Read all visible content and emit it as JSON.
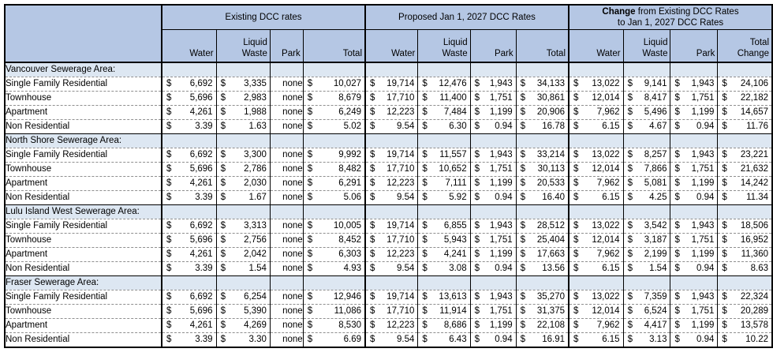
{
  "colors": {
    "header_bg": "#b5c7e4",
    "section_bg": "#dde7f2",
    "grid_line": "#000000",
    "row_divider": "#8f8f8f"
  },
  "table": {
    "currency_symbol": "$",
    "none_label": "none",
    "groups": [
      {
        "id": "existing",
        "title_bold": "",
        "title_rest": "Existing DCC rates",
        "title_line2": "",
        "columns": [
          {
            "lines": [
              "Water"
            ]
          },
          {
            "lines": [
              "Liquid",
              "Waste"
            ]
          },
          {
            "lines": [
              "Park"
            ]
          },
          {
            "lines": [
              "Total"
            ]
          }
        ]
      },
      {
        "id": "proposed",
        "title_bold": "",
        "title_rest": "Proposed Jan 1, 2027 DCC Rates",
        "title_line2": "",
        "columns": [
          {
            "lines": [
              "Water"
            ]
          },
          {
            "lines": [
              "Liquid",
              "Waste"
            ]
          },
          {
            "lines": [
              "Park"
            ]
          },
          {
            "lines": [
              "Total"
            ]
          }
        ]
      },
      {
        "id": "change",
        "title_bold": "Change",
        "title_rest": " from Existing DCC Rates",
        "title_line2": "to Jan 1, 2027 DCC Rates",
        "columns": [
          {
            "lines": [
              "Water"
            ]
          },
          {
            "lines": [
              "Liquid",
              "Waste"
            ]
          },
          {
            "lines": [
              "Park"
            ]
          },
          {
            "lines": [
              "Total",
              "Change"
            ]
          }
        ]
      }
    ],
    "sections": [
      {
        "name": "Vancouver Sewerage Area:",
        "rows": [
          {
            "label": "Single Family Residential",
            "values": [
              "6,692",
              "3,335",
              "none",
              "10,027",
              "19,714",
              "12,476",
              "1,943",
              "34,133",
              "13,022",
              "9,141",
              "1,943",
              "24,106"
            ]
          },
          {
            "label": "Townhouse",
            "values": [
              "5,696",
              "2,983",
              "none",
              "8,679",
              "17,710",
              "11,400",
              "1,751",
              "30,861",
              "12,014",
              "8,417",
              "1,751",
              "22,182"
            ]
          },
          {
            "label": "Apartment",
            "values": [
              "4,261",
              "1,988",
              "none",
              "6,249",
              "12,223",
              "7,484",
              "1,199",
              "20,906",
              "7,962",
              "5,496",
              "1,199",
              "14,657"
            ]
          },
          {
            "label": "Non Residential",
            "values": [
              "3.39",
              "1.63",
              "none",
              "5.02",
              "9.54",
              "6.30",
              "0.94",
              "16.78",
              "6.15",
              "4.67",
              "0.94",
              "11.76"
            ]
          }
        ]
      },
      {
        "name": "North Shore Sewerage Area:",
        "rows": [
          {
            "label": "Single Family Residential",
            "values": [
              "6,692",
              "3,300",
              "none",
              "9,992",
              "19,714",
              "11,557",
              "1,943",
              "33,214",
              "13,022",
              "8,257",
              "1,943",
              "23,221"
            ]
          },
          {
            "label": "Townhouse",
            "values": [
              "5,696",
              "2,786",
              "none",
              "8,482",
              "17,710",
              "10,652",
              "1,751",
              "30,113",
              "12,014",
              "7,866",
              "1,751",
              "21,632"
            ]
          },
          {
            "label": "Apartment",
            "values": [
              "4,261",
              "2,030",
              "none",
              "6,291",
              "12,223",
              "7,111",
              "1,199",
              "20,533",
              "7,962",
              "5,081",
              "1,199",
              "14,242"
            ]
          },
          {
            "label": "Non Residential",
            "values": [
              "3.39",
              "1.67",
              "none",
              "5.06",
              "9.54",
              "5.92",
              "0.94",
              "16.40",
              "6.15",
              "4.25",
              "0.94",
              "11.34"
            ]
          }
        ]
      },
      {
        "name": "Lulu Island West Sewerage Area:",
        "rows": [
          {
            "label": "Single Family Residential",
            "values": [
              "6,692",
              "3,313",
              "none",
              "10,005",
              "19,714",
              "6,855",
              "1,943",
              "28,512",
              "13,022",
              "3,542",
              "1,943",
              "18,506"
            ]
          },
          {
            "label": "Townhouse",
            "values": [
              "5,696",
              "2,756",
              "none",
              "8,452",
              "17,710",
              "5,943",
              "1,751",
              "25,404",
              "12,014",
              "3,187",
              "1,751",
              "16,952"
            ]
          },
          {
            "label": "Apartment",
            "values": [
              "4,261",
              "2,042",
              "none",
              "6,303",
              "12,223",
              "4,241",
              "1,199",
              "17,663",
              "7,962",
              "2,199",
              "1,199",
              "11,360"
            ]
          },
          {
            "label": "Non Residential",
            "values": [
              "3.39",
              "1.54",
              "none",
              "4.93",
              "9.54",
              "3.08",
              "0.94",
              "13.56",
              "6.15",
              "1.54",
              "0.94",
              "8.63"
            ]
          }
        ]
      },
      {
        "name": "Fraser Sewerage Area:",
        "rows": [
          {
            "label": "Single Family Residential",
            "values": [
              "6,692",
              "6,254",
              "none",
              "12,946",
              "19,714",
              "13,613",
              "1,943",
              "35,270",
              "13,022",
              "7,359",
              "1,943",
              "22,324"
            ]
          },
          {
            "label": "Townhouse",
            "values": [
              "5,696",
              "5,390",
              "none",
              "11,086",
              "17,710",
              "11,914",
              "1,751",
              "31,375",
              "12,014",
              "6,524",
              "1,751",
              "20,289"
            ]
          },
          {
            "label": "Apartment",
            "values": [
              "4,261",
              "4,269",
              "none",
              "8,530",
              "12,223",
              "8,686",
              "1,199",
              "22,108",
              "7,962",
              "4,417",
              "1,199",
              "13,578"
            ]
          },
          {
            "label": "Non Residential",
            "values": [
              "3.39",
              "3.30",
              "none",
              "6.69",
              "9.54",
              "6.43",
              "0.94",
              "16.91",
              "6.15",
              "3.13",
              "0.94",
              "10.22"
            ]
          }
        ]
      }
    ]
  }
}
